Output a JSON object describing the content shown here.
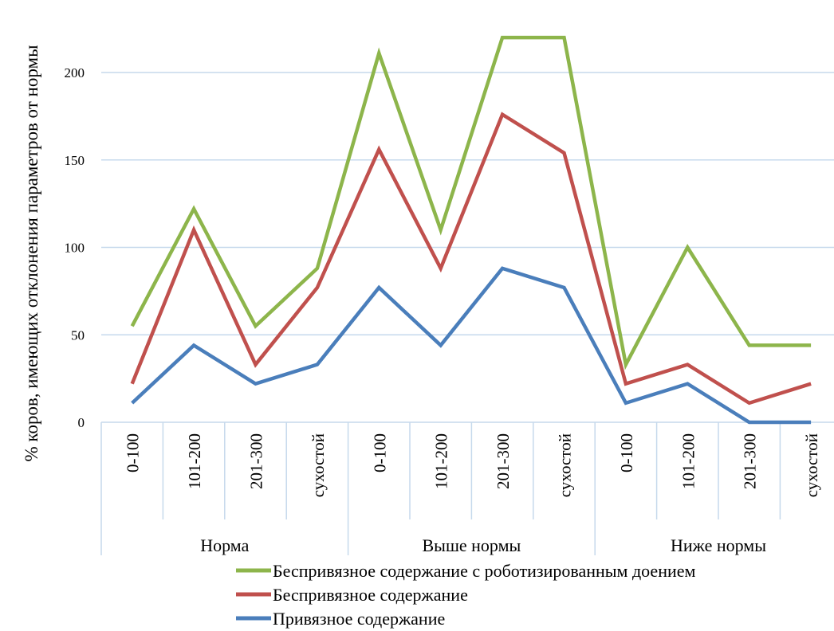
{
  "chart_data": {
    "type": "line",
    "title": "",
    "xlabel": "",
    "ylabel": "% коров, имеющих отклонения параметров от нормы",
    "ylim": [
      0,
      220
    ],
    "yticks": [
      0,
      50,
      100,
      150,
      200
    ],
    "grid": true,
    "legend_position": "bottom",
    "groups": [
      "Норма",
      "Выше нормы",
      "Ниже нормы"
    ],
    "categories": [
      "0-100",
      "101-200",
      "201-300",
      "сухостой",
      "0-100",
      "101-200",
      "201-300",
      "сухостой",
      "0-100",
      "101-200",
      "201-300",
      "сухостой"
    ],
    "series": [
      {
        "name": "Беспривязное содержание с роботизированным доением",
        "color": "#8db54b",
        "values": [
          55,
          122,
          55,
          88,
          211,
          110,
          220,
          220,
          33,
          100,
          44,
          44
        ]
      },
      {
        "name": "Беспривязное содержание",
        "color": "#c0504d",
        "values": [
          22,
          110,
          33,
          77,
          156,
          88,
          176,
          154,
          22,
          33,
          11,
          22
        ]
      },
      {
        "name": "Привязное содержание",
        "color": "#4a7ebb",
        "values": [
          11,
          44,
          22,
          33,
          77,
          44,
          88,
          77,
          11,
          22,
          0,
          0
        ]
      }
    ]
  }
}
